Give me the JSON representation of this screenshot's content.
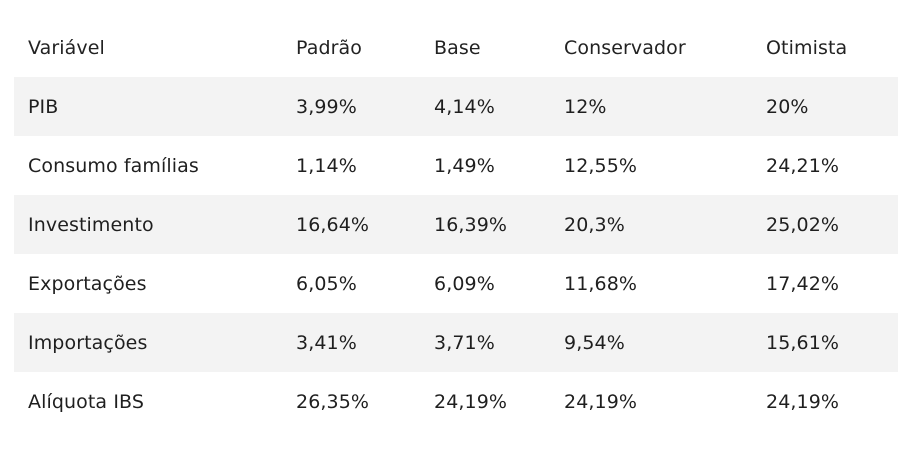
{
  "table": {
    "headers": [
      "Variável",
      "Padrão",
      "Base",
      "Conservador",
      "Otimista"
    ],
    "rows": [
      [
        "PIB",
        "3,99%",
        "4,14%",
        "12%",
        "20%"
      ],
      [
        "Consumo famílias",
        "1,14%",
        "1,49%",
        "12,55%",
        "24,21%"
      ],
      [
        "Investimento",
        "16,64%",
        "16,39%",
        "20,3%",
        "25,02%"
      ],
      [
        "Exportações",
        "6,05%",
        "6,09%",
        "11,68%",
        "17,42%"
      ],
      [
        "Importações",
        "3,41%",
        "3,71%",
        "9,54%",
        "15,61%"
      ],
      [
        "Alíquota IBS",
        "26,35%",
        "24,19%",
        "24,19%",
        "24,19%"
      ]
    ],
    "colors": {
      "shaded_row": "#f3f3f3",
      "text": "#1f1f1f"
    }
  }
}
